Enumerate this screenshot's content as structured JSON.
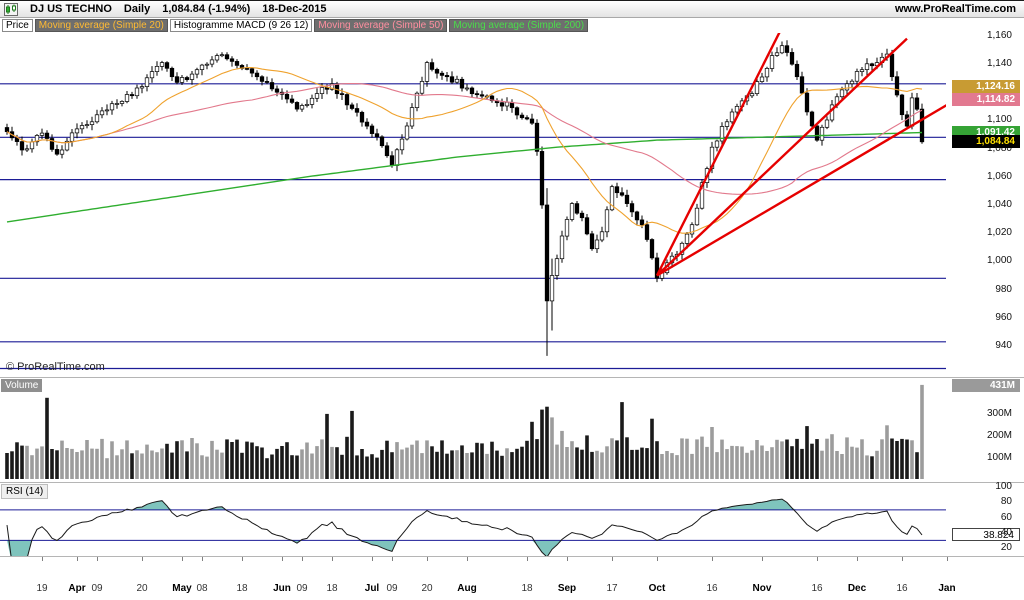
{
  "header": {
    "instrument": "DJ US TECHNO",
    "timeframe": "Daily",
    "last_price": "1,084.84",
    "change": "(-1.94%)",
    "date": "18-Dec-2015",
    "site": "www.ProRealTime.com"
  },
  "indicator_chips": [
    {
      "label": "Price",
      "fg": "#000000",
      "bg": "#ffffff",
      "border": "#8a8a8a"
    },
    {
      "label": "Moving average (Simple 20)",
      "fg": "#ffbb33",
      "bg": "#6e6e6e",
      "border": "#565656"
    },
    {
      "label": "Histogramme MACD (9 26 12)",
      "fg": "#000000",
      "bg": "#ffffff",
      "border": "#8a8a8a"
    },
    {
      "label": "Moving average (Simple 50)",
      "fg": "#ff8fa0",
      "bg": "#6e6e6e",
      "border": "#565656"
    },
    {
      "label": "Moving average (Simple 200)",
      "fg": "#4ade4a",
      "bg": "#6e6e6e",
      "border": "#565656"
    }
  ],
  "price_pane": {
    "copyright": "© ProRealTime.com",
    "axis_ticks": [
      1160,
      1140,
      1120,
      1100,
      1080,
      1060,
      1040,
      1020,
      1000,
      980,
      960,
      940
    ],
    "badges": [
      {
        "name": "sma20-value",
        "label": "1,124.16",
        "value": 1124.16,
        "bg": "#c89b33",
        "fg": "#ffffff"
      },
      {
        "name": "sma50-value",
        "label": "1,114.82",
        "value": 1114.82,
        "bg": "#e27990",
        "fg": "#ffffff"
      },
      {
        "name": "sma200-value",
        "label": "1,091.42",
        "value": 1091.42,
        "bg": "#35a335",
        "fg": "#ffffff"
      },
      {
        "name": "last-price-value",
        "label": "1,084.84",
        "value": 1084.84,
        "bg": "#000000",
        "fg": "#ffe100"
      }
    ]
  },
  "volume_pane": {
    "label": "Volume",
    "ticks": [
      {
        "v": 100,
        "label": "100M"
      },
      {
        "v": 200,
        "label": "200M"
      },
      {
        "v": 300,
        "label": "300M"
      }
    ],
    "badge": "431M"
  },
  "rsi_pane": {
    "label": "RSI (14)",
    "value": "38.824",
    "ticks": [
      100,
      80,
      60,
      40,
      20
    ],
    "lines": [
      70,
      30
    ]
  },
  "xaxis": {
    "labels": [
      {
        "t": "19",
        "i": 7
      },
      {
        "t": "Apr",
        "i": 14,
        "b": 1
      },
      {
        "t": "09",
        "i": 18
      },
      {
        "t": "20",
        "i": 27
      },
      {
        "t": "May",
        "i": 35,
        "b": 1
      },
      {
        "t": "08",
        "i": 39
      },
      {
        "t": "18",
        "i": 47
      },
      {
        "t": "Jun",
        "i": 55,
        "b": 1
      },
      {
        "t": "09",
        "i": 59
      },
      {
        "t": "18",
        "i": 65
      },
      {
        "t": "Jul",
        "i": 73,
        "b": 1
      },
      {
        "t": "09",
        "i": 77
      },
      {
        "t": "20",
        "i": 84
      },
      {
        "t": "Aug",
        "i": 92,
        "b": 1
      },
      {
        "t": "18",
        "i": 104
      },
      {
        "t": "Sep",
        "i": 112,
        "b": 1
      },
      {
        "t": "17",
        "i": 121
      },
      {
        "t": "Oct",
        "i": 130,
        "b": 1
      },
      {
        "t": "16",
        "i": 141
      },
      {
        "t": "Nov",
        "i": 151,
        "b": 1
      },
      {
        "t": "16",
        "i": 162
      },
      {
        "t": "Dec",
        "i": 170,
        "b": 1
      },
      {
        "t": "16",
        "i": 179
      },
      {
        "t": "Jan",
        "i": 188,
        "b": 1
      }
    ]
  },
  "colors": {
    "navy": "#1c1c96",
    "red": "#e60000",
    "ma20": "#efa22e",
    "ma50": "#e2798c",
    "ma200": "#2fae2f",
    "candle_up": "#ffffff",
    "candle_down": "#000000",
    "vol_up": "#9c9c9c",
    "vol_down": "#1a1a1a",
    "rsi_line": "#1a1a1a",
    "rsi_fill": "#7fc4bd"
  },
  "chart_data": {
    "type": "candlestick",
    "title": "DJ US TECHNO Daily",
    "ylabel": "Price",
    "ylim": [
      918,
      1162
    ],
    "n_candles": 184,
    "noise": 2.6,
    "close_keyframes": [
      [
        0,
        1092
      ],
      [
        3,
        1079
      ],
      [
        7,
        1091
      ],
      [
        10,
        1076
      ],
      [
        14,
        1094
      ],
      [
        18,
        1104
      ],
      [
        22,
        1112
      ],
      [
        27,
        1124
      ],
      [
        31,
        1141
      ],
      [
        34,
        1127
      ],
      [
        38,
        1136
      ],
      [
        42,
        1146
      ],
      [
        46,
        1139
      ],
      [
        50,
        1131
      ],
      [
        54,
        1120
      ],
      [
        58,
        1108
      ],
      [
        62,
        1119
      ],
      [
        65,
        1126
      ],
      [
        68,
        1111
      ],
      [
        72,
        1096
      ],
      [
        75,
        1082
      ],
      [
        77,
        1068
      ],
      [
        80,
        1096
      ],
      [
        84,
        1141
      ],
      [
        88,
        1131
      ],
      [
        92,
        1123
      ],
      [
        97,
        1114
      ],
      [
        101,
        1109
      ],
      [
        104,
        1101
      ],
      [
        105,
        1098
      ],
      [
        106,
        1078
      ],
      [
        107,
        1040
      ],
      [
        108,
        972
      ],
      [
        109,
        990
      ],
      [
        111,
        1018
      ],
      [
        113,
        1041
      ],
      [
        115,
        1031
      ],
      [
        117,
        1009
      ],
      [
        119,
        1021
      ],
      [
        121,
        1053
      ],
      [
        124,
        1041
      ],
      [
        127,
        1026
      ],
      [
        130,
        988
      ],
      [
        132,
        999
      ],
      [
        134,
        1005
      ],
      [
        137,
        1026
      ],
      [
        141,
        1081
      ],
      [
        145,
        1106
      ],
      [
        149,
        1119
      ],
      [
        153,
        1146
      ],
      [
        155,
        1153
      ],
      [
        158,
        1131
      ],
      [
        160,
        1106
      ],
      [
        162,
        1086
      ],
      [
        165,
        1111
      ],
      [
        168,
        1126
      ],
      [
        171,
        1136
      ],
      [
        174,
        1141
      ],
      [
        176,
        1147
      ],
      [
        177,
        1131
      ],
      [
        178,
        1118
      ],
      [
        179,
        1104
      ],
      [
        180,
        1096
      ],
      [
        181,
        1116
      ],
      [
        182,
        1108
      ],
      [
        183,
        1084.84
      ]
    ],
    "wick_overrides": [
      [
        108,
        1052,
        933
      ],
      [
        109,
        1002,
        951
      ]
    ],
    "sma_periods": [
      20,
      50,
      200
    ],
    "sma200_anchors": [
      [
        0,
        1028
      ],
      [
        30,
        1044
      ],
      [
        60,
        1060
      ],
      [
        90,
        1074
      ],
      [
        110,
        1081
      ],
      [
        130,
        1086
      ],
      [
        150,
        1088
      ],
      [
        170,
        1090
      ],
      [
        183,
        1091.4
      ]
    ],
    "hlines": [
      1126,
      1088,
      1058,
      988,
      943,
      924
    ],
    "trendlines": [
      [
        130,
        990,
        155,
        1166
      ],
      [
        130,
        990,
        180,
        1158
      ],
      [
        130,
        990,
        188,
        1111
      ]
    ],
    "volume": {
      "ylim": [
        0,
        435
      ],
      "unit": "M",
      "spikes": [
        [
          8,
          372
        ],
        [
          64,
          298
        ],
        [
          69,
          312
        ],
        [
          105,
          262
        ],
        [
          107,
          318
        ],
        [
          108,
          331
        ],
        [
          109,
          282
        ],
        [
          123,
          352
        ],
        [
          129,
          276
        ],
        [
          141,
          238
        ],
        [
          160,
          242
        ],
        [
          176,
          246
        ],
        [
          183,
          431
        ]
      ],
      "base_range": [
        90,
        180
      ],
      "last": 431
    },
    "rsi": {
      "period": 14,
      "overbought": 70,
      "oversold": 30,
      "last": 38.824
    }
  }
}
